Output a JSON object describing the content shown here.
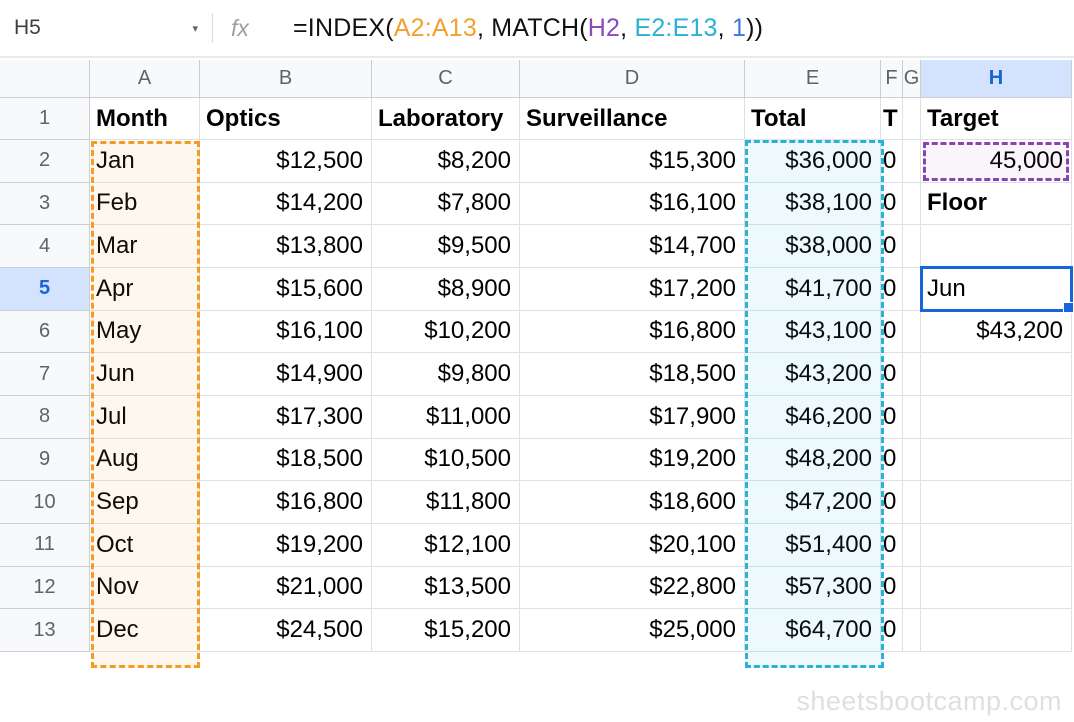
{
  "formula_bar": {
    "cell_reference": "H5",
    "fx_label": "fx",
    "formula_parts": [
      {
        "text": "=INDEX(",
        "color": "#111111"
      },
      {
        "text": "A2:A13",
        "color": "#f2a032"
      },
      {
        "text": ", MATCH(",
        "color": "#111111"
      },
      {
        "text": "H2",
        "color": "#8a4ac0"
      },
      {
        "text": ", ",
        "color": "#111111"
      },
      {
        "text": "E2:E13",
        "color": "#27b2d6"
      },
      {
        "text": ", ",
        "color": "#111111"
      },
      {
        "text": "1",
        "color": "#3c78e0"
      },
      {
        "text": "))",
        "color": "#111111"
      }
    ]
  },
  "sheet": {
    "column_headers": [
      "A",
      "B",
      "C",
      "D",
      "E",
      "F",
      "G",
      "H"
    ],
    "selected_column": "H",
    "selected_row": 5,
    "bold_cells": [
      "A1",
      "B1",
      "C1",
      "D1",
      "E1",
      "F1",
      "H1",
      "H3"
    ],
    "rows": [
      {
        "num": 1,
        "cells": [
          "Month",
          "Optics",
          "Laboratory",
          "Surveillance",
          "Total",
          "T",
          "",
          "Target"
        ]
      },
      {
        "num": 2,
        "cells": [
          "Jan",
          "$12,500",
          "$8,200",
          "$15,300",
          "$36,000",
          "0",
          "",
          "45,000"
        ]
      },
      {
        "num": 3,
        "cells": [
          "Feb",
          "$14,200",
          "$7,800",
          "$16,100",
          "$38,100",
          "0",
          "",
          "Floor"
        ]
      },
      {
        "num": 4,
        "cells": [
          "Mar",
          "$13,800",
          "$9,500",
          "$14,700",
          "$38,000",
          "0",
          "",
          ""
        ]
      },
      {
        "num": 5,
        "cells": [
          "Apr",
          "$15,600",
          "$8,900",
          "$17,200",
          "$41,700",
          "0",
          "",
          "Jun"
        ]
      },
      {
        "num": 6,
        "cells": [
          "May",
          "$16,100",
          "$10,200",
          "$16,800",
          "$43,100",
          "0",
          "",
          "$43,200"
        ]
      },
      {
        "num": 7,
        "cells": [
          "Jun",
          "$14,900",
          "$9,800",
          "$18,500",
          "$43,200",
          "0",
          "",
          ""
        ]
      },
      {
        "num": 8,
        "cells": [
          "Jul",
          "$17,300",
          "$11,000",
          "$17,900",
          "$46,200",
          "0",
          "",
          ""
        ]
      },
      {
        "num": 9,
        "cells": [
          "Aug",
          "$18,500",
          "$10,500",
          "$19,200",
          "$48,200",
          "0",
          "",
          ""
        ]
      },
      {
        "num": 10,
        "cells": [
          "Sep",
          "$16,800",
          "$11,800",
          "$18,600",
          "$47,200",
          "0",
          "",
          ""
        ]
      },
      {
        "num": 11,
        "cells": [
          "Oct",
          "$19,200",
          "$12,100",
          "$20,100",
          "$51,400",
          "0",
          "",
          ""
        ]
      },
      {
        "num": 12,
        "cells": [
          "Nov",
          "$21,000",
          "$13,500",
          "$22,800",
          "$57,300",
          "0",
          "",
          ""
        ]
      },
      {
        "num": 13,
        "cells": [
          "Dec",
          "$24,500",
          "$15,200",
          "$25,000",
          "$64,700",
          "0",
          "",
          ""
        ]
      }
    ]
  },
  "selection": {
    "active_cell": {
      "ref": "H5",
      "value": "Jun"
    },
    "highlighted_ranges": [
      {
        "range": "A2:A13",
        "color": "#f29d22"
      },
      {
        "range": "E2:E13",
        "color": "#27b2d6"
      },
      {
        "range": "H2",
        "color": "#8a44ad"
      }
    ]
  },
  "colors": {
    "selection_blue": "#1765d8",
    "selected_header_bg": "#d3e3fd",
    "range_orange": "#f29d22",
    "range_teal": "#27b2d6",
    "range_purple": "#8a44ad"
  },
  "watermark": "sheetsbootcamp.com"
}
